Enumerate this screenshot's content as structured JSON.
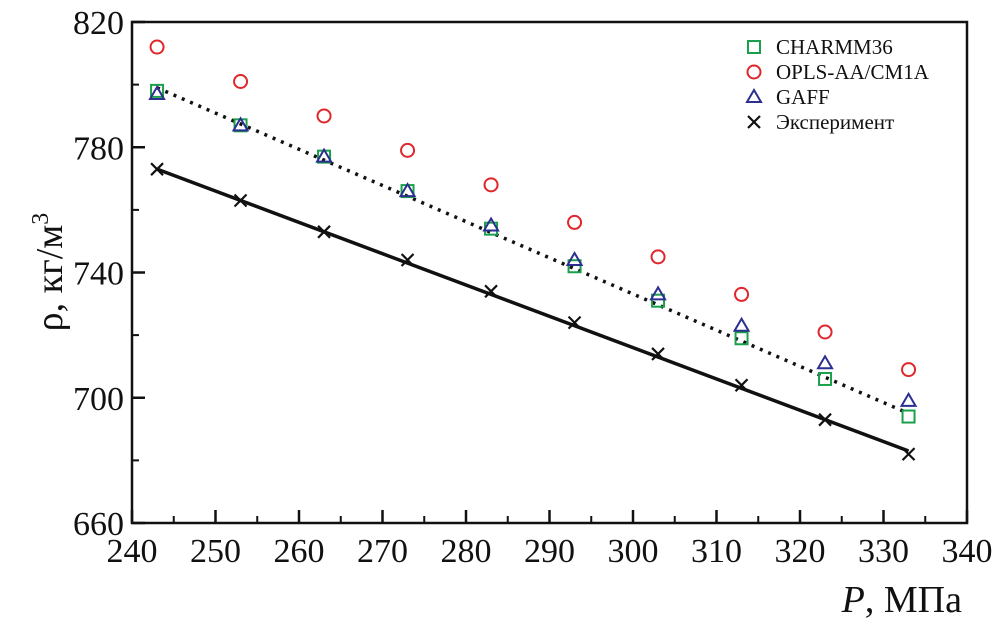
{
  "chart_data": {
    "type": "scatter",
    "title": "",
    "xlabel": {
      "symbol": "P",
      "unit": ", МПа"
    },
    "ylabel": {
      "main": "ρ, кг/м",
      "sup": "3"
    },
    "xlim": [
      240,
      340
    ],
    "ylim": [
      660,
      820
    ],
    "xticks": [
      240,
      250,
      260,
      270,
      280,
      290,
      300,
      310,
      320,
      330,
      340
    ],
    "yticks": [
      660,
      700,
      740,
      780,
      820
    ],
    "grid": false,
    "legend_position": "top-right",
    "x": [
      243,
      253,
      263,
      273,
      283,
      293,
      303,
      313,
      323,
      333
    ],
    "series": [
      {
        "name": "CHARMM36",
        "marker": "square",
        "color": "#1aa04a",
        "values": [
          798,
          787,
          777,
          766,
          754,
          742,
          731,
          719,
          706,
          694
        ]
      },
      {
        "name": "OPLS-AA/CM1A",
        "marker": "circle",
        "color": "#e0262b",
        "values": [
          812,
          801,
          790,
          779,
          768,
          756,
          745,
          733,
          721,
          709
        ]
      },
      {
        "name": "GAFF",
        "marker": "triangle",
        "color": "#2b2f8f",
        "values": [
          797,
          787,
          777,
          766,
          755,
          744,
          733,
          723,
          711,
          699
        ]
      },
      {
        "name": "Эксперимент",
        "marker": "cross",
        "color": "#111111",
        "values": [
          773,
          763,
          753,
          744,
          734,
          724,
          714,
          704,
          693,
          682
        ]
      }
    ],
    "fit_lines": [
      {
        "style": "dotted",
        "color": "#111111",
        "x": [
          243,
          333
        ],
        "y": [
          799,
          695
        ]
      },
      {
        "style": "solid",
        "color": "#111111",
        "x": [
          243,
          333
        ],
        "y": [
          773,
          683
        ]
      }
    ]
  }
}
